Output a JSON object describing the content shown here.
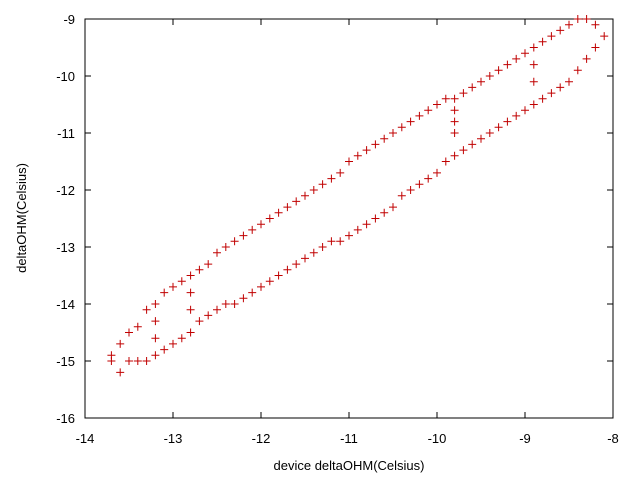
{
  "chart_data": {
    "type": "scatter",
    "x_label": "device deltaOHM(Celsius)",
    "y_label": "deltaOHM(Celsius)",
    "xlim": [
      -14,
      -8
    ],
    "xticks": [
      -14,
      -13,
      -12,
      -11,
      -10,
      -9,
      -8
    ],
    "ylim": [
      -16,
      -9
    ],
    "yticks": [
      -16,
      -15,
      -14,
      -13,
      -12,
      -11,
      -10,
      -9
    ],
    "grid": false,
    "series": [
      {
        "color": "#c00000",
        "x": [
          -13.7,
          -13.7,
          -13.6,
          -13.5,
          -13.4,
          -13.3,
          -13.2,
          -13.1,
          -13.0,
          -12.9,
          -12.8,
          -12.7,
          -12.6,
          -12.5,
          -12.4,
          -12.3,
          -12.2,
          -12.1,
          -12.0,
          -11.9,
          -11.8,
          -11.7,
          -11.6,
          -11.5,
          -11.4,
          -11.3,
          -11.2,
          -11.1,
          -11.0,
          -10.9,
          -10.8,
          -10.7,
          -10.6,
          -10.5,
          -10.4,
          -10.3,
          -10.2,
          -10.1,
          -10.0,
          -9.9,
          -9.8,
          -9.7,
          -9.6,
          -9.5,
          -9.4,
          -9.3,
          -9.2,
          -9.1,
          -9.0,
          -8.9,
          -8.8,
          -8.7,
          -8.6,
          -8.5,
          -8.4,
          -8.3,
          -13.6,
          -13.5,
          -13.4,
          -13.3,
          -13.2,
          -13.1,
          -13.0,
          -12.9,
          -12.8,
          -12.7,
          -12.6,
          -12.5,
          -12.4,
          -12.3,
          -12.2,
          -12.1,
          -12.0,
          -11.9,
          -11.8,
          -11.7,
          -11.6,
          -11.5,
          -11.4,
          -11.3,
          -11.2,
          -11.1,
          -11.0,
          -10.9,
          -10.8,
          -10.7,
          -10.6,
          -10.5,
          -10.4,
          -10.3,
          -10.2,
          -10.1,
          -10.0,
          -9.9,
          -9.8,
          -9.7,
          -9.6,
          -9.5,
          -9.4,
          -9.3,
          -9.2,
          -9.1,
          -9.0,
          -8.9,
          -8.8,
          -8.7,
          -8.6,
          -8.5,
          -8.4,
          -8.3,
          -8.2,
          -8.1,
          -8.2,
          -9.8,
          -9.8,
          -9.8,
          -8.9,
          -8.9,
          -13.2,
          -13.2,
          -12.8,
          -12.8
        ],
        "y": [
          -15.0,
          -14.9,
          -14.7,
          -14.5,
          -14.4,
          -14.1,
          -14.0,
          -13.8,
          -13.7,
          -13.6,
          -13.5,
          -13.4,
          -13.3,
          -13.1,
          -13.0,
          -12.9,
          -12.8,
          -12.7,
          -12.6,
          -12.5,
          -12.4,
          -12.3,
          -12.2,
          -12.1,
          -12.0,
          -11.9,
          -11.8,
          -11.7,
          -11.5,
          -11.4,
          -11.3,
          -11.2,
          -11.1,
          -11.0,
          -10.9,
          -10.8,
          -10.7,
          -10.6,
          -10.5,
          -10.4,
          -10.4,
          -10.3,
          -10.2,
          -10.1,
          -10.0,
          -9.9,
          -9.8,
          -9.7,
          -9.6,
          -9.5,
          -9.4,
          -9.3,
          -9.2,
          -9.1,
          -9.0,
          -9.0,
          -15.2,
          -15.0,
          -15.0,
          -15.0,
          -14.9,
          -14.8,
          -14.7,
          -14.6,
          -14.5,
          -14.3,
          -14.2,
          -14.1,
          -14.0,
          -14.0,
          -13.9,
          -13.8,
          -13.7,
          -13.6,
          -13.5,
          -13.4,
          -13.3,
          -13.2,
          -13.1,
          -13.0,
          -12.9,
          -12.9,
          -12.8,
          -12.7,
          -12.6,
          -12.5,
          -12.4,
          -12.3,
          -12.1,
          -12.0,
          -11.9,
          -11.8,
          -11.7,
          -11.5,
          -11.4,
          -11.3,
          -11.2,
          -11.1,
          -11.0,
          -10.9,
          -10.8,
          -10.7,
          -10.6,
          -10.5,
          -10.4,
          -10.3,
          -10.2,
          -10.1,
          -9.9,
          -9.7,
          -9.5,
          -9.3,
          -9.1,
          -10.6,
          -10.8,
          -11.0,
          -9.8,
          -10.1,
          -14.3,
          -14.6,
          -13.8,
          -14.1
        ]
      }
    ]
  }
}
